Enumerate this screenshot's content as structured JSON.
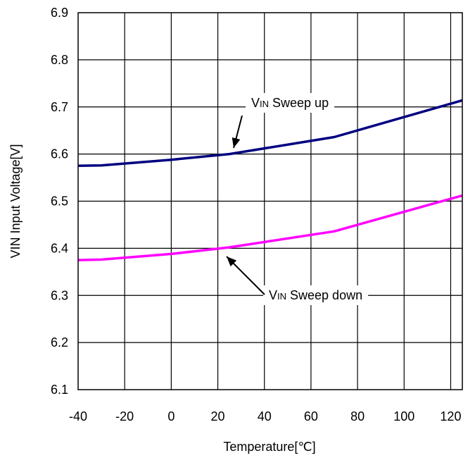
{
  "chart_data": {
    "type": "line",
    "title": "",
    "xlabel": "Temperature[℃]",
    "ylabel": "VIN Input Voltage[V]",
    "xlim": [
      -40,
      125
    ],
    "ylim": [
      6.1,
      6.9
    ],
    "xticks": [
      "-40",
      "-20",
      "0",
      "20",
      "40",
      "60",
      "80",
      "100",
      "120"
    ],
    "yticks": [
      "6.1",
      "6.2",
      "6.3",
      "6.4",
      "6.5",
      "6.6",
      "6.7",
      "6.8",
      "6.9"
    ],
    "grid": true,
    "series": [
      {
        "name": "VIN Sweep up",
        "color": "#000080",
        "x": [
          -40,
          -30,
          0,
          25,
          70,
          125
        ],
        "y": [
          6.575,
          6.576,
          6.588,
          6.6,
          6.636,
          6.714
        ]
      },
      {
        "name": "VIN Sweep down",
        "color": "#ff00ff",
        "x": [
          -40,
          -30,
          0,
          25,
          70,
          125
        ],
        "y": [
          6.375,
          6.376,
          6.388,
          6.402,
          6.436,
          6.512
        ]
      }
    ],
    "annotations": [
      {
        "label_prefix": "V",
        "label_sub": "IN",
        "label_rest": " Sweep up"
      },
      {
        "label_prefix": "V",
        "label_sub": "IN",
        "label_rest": " Sweep down"
      }
    ]
  }
}
